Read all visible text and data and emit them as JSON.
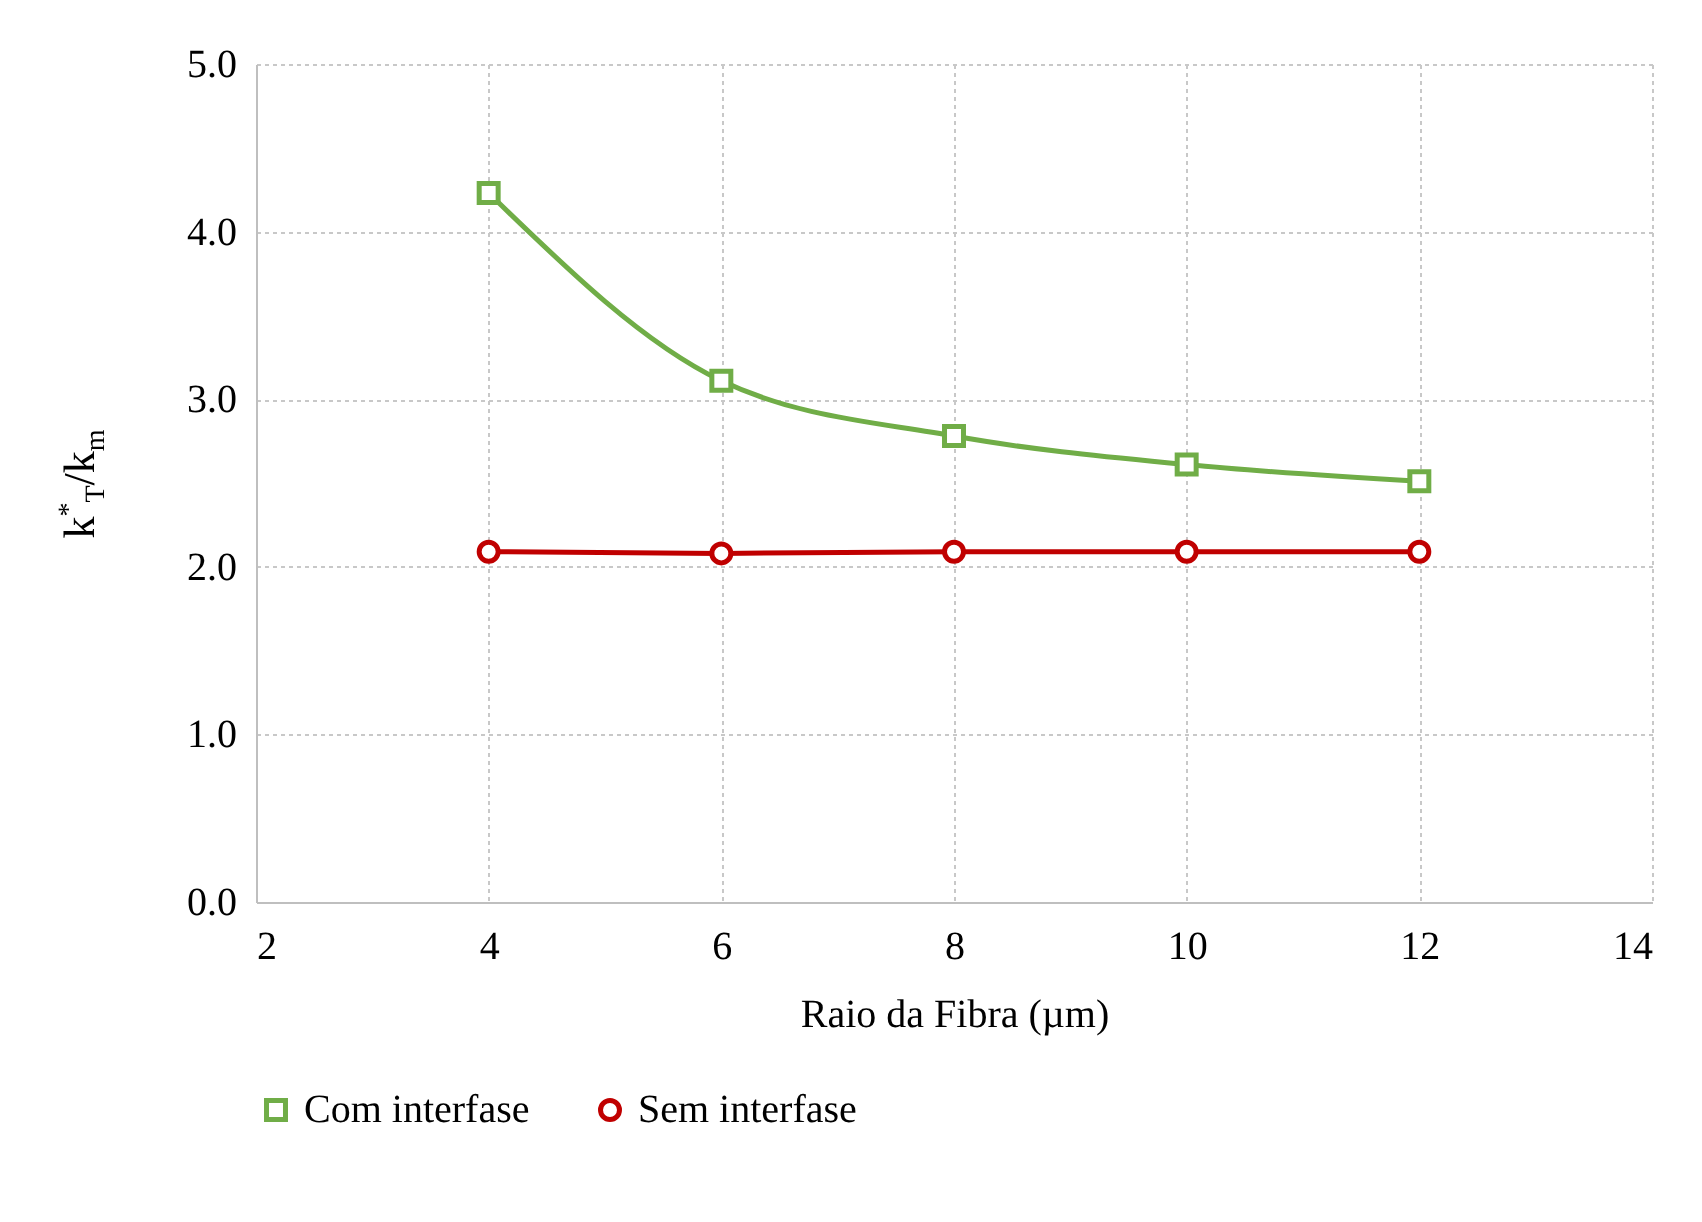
{
  "chart_data": {
    "type": "line",
    "xlabel": "Raio da Fibra (µm)",
    "ylabel": "k$^{*}$$_{T}$/k$_{m}$",
    "x": [
      4,
      6,
      8,
      10,
      12
    ],
    "series": [
      {
        "name": "Com interfase",
        "color": "#70ad47",
        "marker": "square",
        "values": [
          4.23,
          3.11,
          2.78,
          2.61,
          2.51
        ]
      },
      {
        "name": "Sem interfase",
        "color": "#c00000",
        "marker": "circle",
        "values": [
          2.09,
          2.08,
          2.09,
          2.09,
          2.09
        ]
      }
    ],
    "xlim": [
      2,
      14
    ],
    "xticks": [
      2,
      4,
      6,
      8,
      10,
      12,
      14
    ],
    "ylim": [
      0,
      5
    ],
    "yticks": [
      {
        "value": 0,
        "label": "0.0"
      },
      {
        "value": 1,
        "label": "1.0"
      },
      {
        "value": 2,
        "label": "2.0"
      },
      {
        "value": 3,
        "label": "3.0"
      },
      {
        "value": 4,
        "label": "4.0"
      },
      {
        "value": 5,
        "label": "5.0"
      }
    ],
    "grid": true,
    "legend": "bottom",
    "line_style": "solid"
  }
}
